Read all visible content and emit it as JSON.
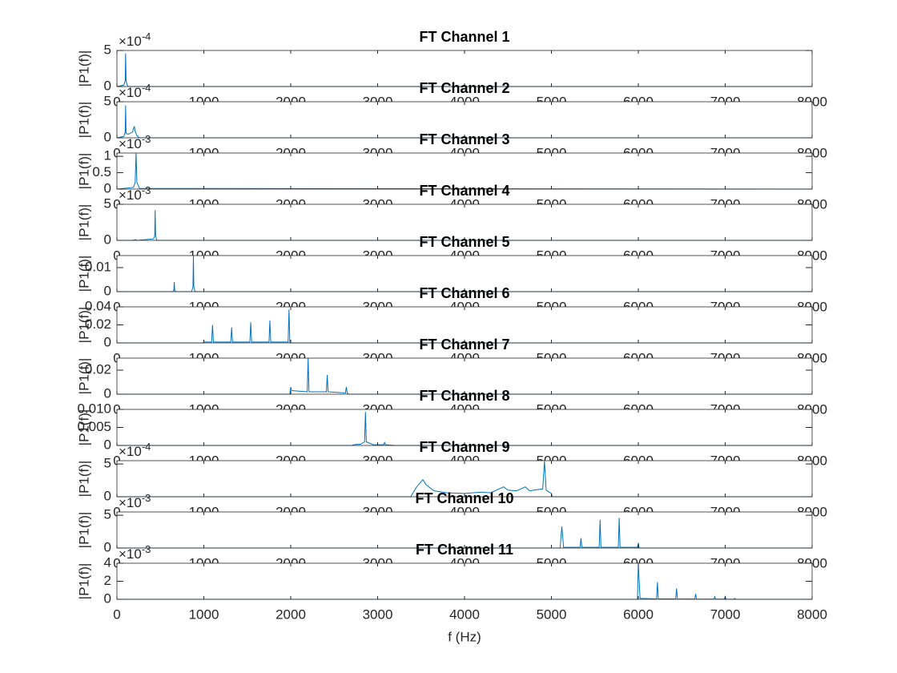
{
  "chart_data": [
    {
      "type": "line",
      "title": "FT Channel 1",
      "ylabel": "|P1(f)|",
      "y_multiplier": "×10",
      "y_exponent": "-4",
      "color": "#0072bd",
      "xlim": [
        0,
        8000
      ],
      "xticks": [
        0,
        1000,
        2000,
        3000,
        4000,
        5000,
        6000,
        7000,
        8000
      ],
      "ylim": [
        0,
        5
      ],
      "yticks": [
        0,
        5
      ],
      "x": [
        0,
        80,
        95,
        100,
        105,
        115,
        130,
        8000
      ],
      "values": [
        0,
        0.2,
        0.8,
        4.6,
        0.8,
        0.3,
        0,
        0
      ]
    },
    {
      "type": "line",
      "title": "FT Channel 2",
      "ylabel": "|P1(f)|",
      "y_multiplier": "×10",
      "y_exponent": "-4",
      "color": "#0072bd",
      "xlim": [
        0,
        8000
      ],
      "xticks": [
        0,
        1000,
        2000,
        3000,
        4000,
        5000,
        6000,
        7000,
        8000
      ],
      "ylim": [
        0,
        5
      ],
      "yticks": [
        0,
        5
      ],
      "x": [
        0,
        80,
        95,
        100,
        105,
        130,
        180,
        200,
        210,
        230,
        260,
        8000
      ],
      "values": [
        0,
        0.2,
        0.8,
        4.5,
        0.6,
        0.5,
        0.8,
        1.6,
        0.9,
        0.3,
        0,
        0
      ]
    },
    {
      "type": "line",
      "title": "FT Channel 3",
      "ylabel": "|P1(f)|",
      "y_multiplier": "×10",
      "y_exponent": "-3",
      "color": "#0072bd",
      "xlim": [
        0,
        8000
      ],
      "xticks": [
        0,
        1000,
        2000,
        3000,
        4000,
        5000,
        6000,
        7000,
        8000
      ],
      "ylim": [
        0,
        1.1
      ],
      "yticks": [
        0,
        0.5,
        1
      ],
      "x": [
        0,
        190,
        210,
        220,
        230,
        260,
        8000
      ],
      "values": [
        0,
        0.05,
        0.2,
        1.1,
        0.2,
        0.02,
        0
      ]
    },
    {
      "type": "line",
      "title": "FT Channel 4",
      "ylabel": "|P1(f)|",
      "y_multiplier": "×10",
      "y_exponent": "-3",
      "color": "#0072bd",
      "xlim": [
        0,
        8000
      ],
      "xticks": [
        0,
        1000,
        2000,
        3000,
        4000,
        5000,
        6000,
        7000,
        8000
      ],
      "ylim": [
        0,
        5
      ],
      "yticks": [
        0,
        5
      ],
      "x": [
        0,
        180,
        220,
        230,
        420,
        435,
        440,
        445,
        460,
        8000
      ],
      "values": [
        0,
        0,
        0.1,
        0,
        0.2,
        0.6,
        4.2,
        0.6,
        0,
        0
      ]
    },
    {
      "type": "line",
      "title": "FT Channel 5",
      "ylabel": "|P1(f)|",
      "color": "#0072bd",
      "xlim": [
        0,
        8000
      ],
      "xticks": [
        0,
        1000,
        2000,
        3000,
        4000,
        5000,
        6000,
        7000,
        8000
      ],
      "ylim": [
        0,
        0.015
      ],
      "yticks": [
        0,
        0.01
      ],
      "x": [
        0,
        640,
        655,
        660,
        665,
        680,
        860,
        875,
        880,
        885,
        900,
        8000
      ],
      "values": [
        0,
        0,
        0.0005,
        0.004,
        0.0005,
        0,
        0,
        0.002,
        0.0148,
        0.002,
        0,
        0
      ]
    },
    {
      "type": "line",
      "title": "FT Channel 6",
      "ylabel": "|P1(f)|",
      "color": "#0072bd",
      "xlim": [
        0,
        8000
      ],
      "xticks": [
        0,
        1000,
        2000,
        3000,
        4000,
        5000,
        6000,
        7000,
        8000
      ],
      "ylim": [
        0,
        0.04
      ],
      "yticks": [
        0,
        0.02,
        0.04
      ],
      "x": [
        0,
        990,
        1000,
        1090,
        1100,
        1110,
        1310,
        1320,
        1330,
        1530,
        1540,
        1550,
        1750,
        1760,
        1770,
        1970,
        1980,
        1990,
        2000,
        8000
      ],
      "values": [
        0,
        0,
        0.001,
        0.001,
        0.02,
        0.001,
        0.001,
        0.017,
        0.001,
        0.001,
        0.023,
        0.001,
        0.001,
        0.025,
        0.001,
        0.001,
        0.037,
        0.001,
        0,
        0
      ]
    },
    {
      "type": "line",
      "title": "FT Channel 7",
      "ylabel": "|P1(f)|",
      "color": "#0072bd",
      "xlim": [
        0,
        8000
      ],
      "xticks": [
        0,
        1000,
        2000,
        3000,
        4000,
        5000,
        6000,
        7000,
        8000
      ],
      "ylim": [
        0,
        0.03
      ],
      "yticks": [
        0,
        0.02
      ],
      "x": [
        0,
        1990,
        2000,
        2010,
        2190,
        2200,
        2210,
        2410,
        2420,
        2430,
        2630,
        2640,
        2650,
        2670,
        8000
      ],
      "values": [
        0,
        0,
        0.006,
        0.003,
        0.002,
        0.03,
        0.002,
        0.002,
        0.016,
        0.002,
        0.001,
        0.006,
        0.001,
        0,
        0
      ]
    },
    {
      "type": "line",
      "title": "FT Channel 8",
      "ylabel": "|P1(f)|",
      "color": "#0072bd",
      "xlim": [
        0,
        8000
      ],
      "xticks": [
        0,
        1000,
        2000,
        3000,
        4000,
        5000,
        6000,
        7000,
        8000
      ],
      "ylim": [
        0,
        0.01
      ],
      "yticks": [
        0,
        0.005,
        {
          "value": 0.01,
          "label": "0.010"
        }
      ],
      "x": [
        0,
        2700,
        2750,
        2800,
        2850,
        2860,
        2870,
        2950,
        3070,
        3080,
        3090,
        3200,
        8000
      ],
      "values": [
        0,
        0,
        0.0003,
        0.0003,
        0.001,
        0.0093,
        0.001,
        0.0002,
        0.0002,
        0.0008,
        0.0002,
        0,
        0
      ]
    },
    {
      "type": "line",
      "title": "FT Channel 9",
      "ylabel": "|P1(f)|",
      "y_multiplier": "×10",
      "y_exponent": "-4",
      "color": "#0072bd",
      "xlim": [
        0,
        8000
      ],
      "xticks": [
        0,
        1000,
        2000,
        3000,
        4000,
        5000,
        6000,
        7000,
        8000
      ],
      "ylim": [
        0,
        5.5
      ],
      "yticks": [
        0,
        5
      ],
      "x": [
        0,
        3380,
        3450,
        3520,
        3560,
        3650,
        3800,
        4000,
        4200,
        4300,
        4450,
        4500,
        4600,
        4700,
        4750,
        4900,
        4920,
        4940,
        5000,
        5010,
        8000
      ],
      "values": [
        0,
        0,
        1.5,
        2.6,
        1.8,
        0.9,
        0.6,
        0.5,
        0.7,
        0.6,
        1.5,
        1.0,
        0.9,
        1.5,
        0.9,
        1.2,
        5.4,
        1.0,
        0.5,
        0,
        0
      ]
    },
    {
      "type": "line",
      "title": "FT Channel 10",
      "ylabel": "|P1(f)|",
      "y_multiplier": "×10",
      "y_exponent": "-3",
      "color": "#0072bd",
      "xlim": [
        0,
        8000
      ],
      "xticks": [
        0,
        1000,
        2000,
        3000,
        4000,
        5000,
        6000,
        7000,
        8000
      ],
      "ylim": [
        0,
        5.5
      ],
      "yticks": [
        0,
        5
      ],
      "x": [
        0,
        5100,
        5120,
        5140,
        5330,
        5340,
        5350,
        5550,
        5560,
        5570,
        5770,
        5780,
        5790,
        5990,
        6000,
        6010,
        8000
      ],
      "values": [
        0,
        0,
        3.3,
        0.1,
        0.1,
        1.5,
        0.1,
        0.1,
        4.3,
        0.1,
        0.1,
        4.6,
        0.1,
        0.1,
        0.8,
        0,
        0
      ]
    },
    {
      "type": "line",
      "title": "FT Channel 11",
      "ylabel": "|P1(f)|",
      "xlabel": "f (Hz)",
      "y_multiplier": "×10",
      "y_exponent": "-3",
      "color": "#0072bd",
      "xlim": [
        0,
        8000
      ],
      "xticks": [
        0,
        1000,
        2000,
        3000,
        4000,
        5000,
        6000,
        7000,
        8000
      ],
      "ylim": [
        0,
        4
      ],
      "yticks": [
        0,
        2,
        4
      ],
      "x": [
        0,
        5990,
        6000,
        6020,
        6210,
        6220,
        6230,
        6430,
        6440,
        6450,
        6650,
        6660,
        6670,
        6870,
        6880,
        6890,
        6990,
        7000,
        7010,
        7100,
        7110,
        7120,
        8000
      ],
      "values": [
        0,
        0,
        4,
        0.1,
        0.05,
        1.9,
        0.05,
        0.05,
        1.2,
        0.05,
        0.03,
        0.6,
        0.03,
        0.02,
        0.3,
        0.02,
        0.02,
        0.3,
        0.02,
        0.01,
        0.1,
        0,
        0
      ]
    }
  ]
}
